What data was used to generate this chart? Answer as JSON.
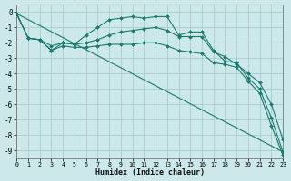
{
  "xlabel": "Humidex (Indice chaleur)",
  "background_color": "#cce8ea",
  "grid_color": "#aacccc",
  "line_color": "#1a7a6e",
  "xlim": [
    0,
    23
  ],
  "ylim": [
    -9.5,
    0.5
  ],
  "xticks": [
    0,
    1,
    2,
    3,
    4,
    5,
    6,
    7,
    8,
    9,
    10,
    11,
    12,
    13,
    14,
    15,
    16,
    17,
    18,
    19,
    20,
    21,
    22,
    23
  ],
  "yticks": [
    0,
    -1,
    -2,
    -3,
    -4,
    -5,
    -6,
    -7,
    -8,
    -9
  ],
  "series": [
    {
      "x": [
        0,
        1,
        2,
        3,
        4,
        5,
        6,
        7,
        8,
        9,
        10,
        11,
        12,
        13,
        14,
        15,
        16,
        17,
        18,
        19,
        20,
        21,
        22,
        23
      ],
      "y": [
        -0.1,
        -1.7,
        -1.8,
        -2.5,
        -2.0,
        -2.1,
        -1.5,
        -1.0,
        -0.5,
        -0.4,
        -0.3,
        -0.4,
        -0.3,
        -0.3,
        -1.5,
        -1.3,
        -1.3,
        -2.5,
        -3.2,
        -3.3,
        -4.3,
        -5.0,
        -6.9,
        -9.1
      ],
      "marker": "D",
      "markersize": 2.0,
      "lw": 0.8,
      "solid": true
    },
    {
      "x": [
        0,
        1,
        2,
        3,
        4,
        5,
        6,
        7,
        8,
        9,
        10,
        11,
        12,
        13,
        14,
        15,
        16,
        17,
        18,
        19,
        20,
        21,
        22,
        23
      ],
      "y": [
        -0.1,
        -1.7,
        -1.8,
        -2.2,
        -2.0,
        -2.1,
        -2.0,
        -1.8,
        -1.5,
        -1.3,
        -1.2,
        -1.1,
        -1.0,
        -1.2,
        -1.6,
        -1.6,
        -1.6,
        -2.6,
        -2.9,
        -3.4,
        -4.0,
        -4.6,
        -6.0,
        -8.3
      ],
      "marker": "D",
      "markersize": 2.0,
      "lw": 0.8,
      "solid": true
    },
    {
      "x": [
        0,
        1,
        2,
        3,
        4,
        5,
        6,
        7,
        8,
        9,
        10,
        11,
        12,
        13,
        14,
        15,
        16,
        17,
        18,
        19,
        20,
        21,
        22,
        23
      ],
      "y": [
        -0.1,
        -1.7,
        -1.8,
        -2.5,
        -2.2,
        -2.3,
        -2.3,
        -2.2,
        -2.1,
        -2.1,
        -2.1,
        -2.0,
        -2.0,
        -2.2,
        -2.5,
        -2.6,
        -2.7,
        -3.3,
        -3.4,
        -3.6,
        -4.5,
        -5.3,
        -7.4,
        -9.3
      ],
      "marker": "D",
      "markersize": 2.0,
      "lw": 0.8,
      "solid": true
    },
    {
      "x": [
        0,
        23
      ],
      "y": [
        -0.1,
        -9.1
      ],
      "marker": null,
      "markersize": 0,
      "lw": 0.8,
      "solid": true
    }
  ]
}
